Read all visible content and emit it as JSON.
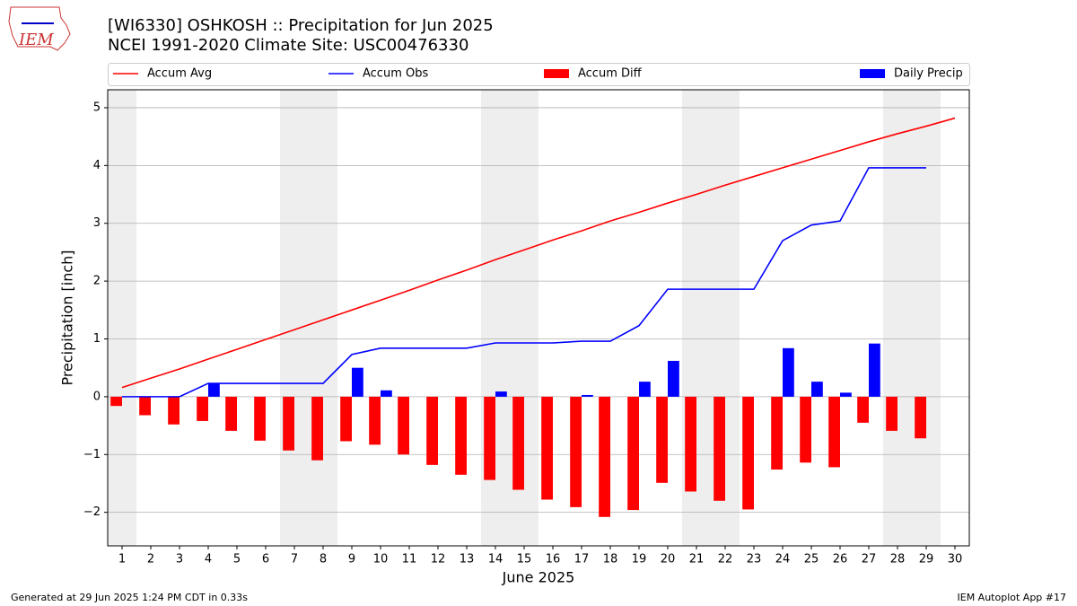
{
  "logo": {
    "text": "IEM"
  },
  "footer": {
    "left": "Generated at 29 Jun 2025 1:24 PM CDT in 0.33s",
    "right": "IEM Autoplot App #17"
  },
  "chart_data": {
    "type": "combo",
    "title": "[WI6330] OSHKOSH :: Precipitation for Jun 2025",
    "subtitle": "NCEI 1991-2020 Climate Site: USC00476330",
    "x_label": "June 2025",
    "y_label": "Precipitation [inch]",
    "x": [
      1,
      2,
      3,
      4,
      5,
      6,
      7,
      8,
      9,
      10,
      11,
      12,
      13,
      14,
      15,
      16,
      17,
      18,
      19,
      20,
      21,
      22,
      23,
      24,
      25,
      26,
      27,
      28,
      29,
      30
    ],
    "xlim": [
      0.5,
      30.5
    ],
    "xticks": [
      1,
      2,
      3,
      4,
      5,
      6,
      7,
      8,
      9,
      10,
      11,
      12,
      13,
      14,
      15,
      16,
      17,
      18,
      19,
      20,
      21,
      22,
      23,
      24,
      25,
      26,
      27,
      28,
      29,
      30
    ],
    "ylim": [
      -2.58,
      5.31
    ],
    "yticks": [
      {
        "value": -2,
        "label": "−2"
      },
      {
        "value": -1,
        "label": "−1"
      },
      0,
      1,
      2,
      3,
      4,
      5
    ],
    "grid": true,
    "shade_ranges": [
      [
        0.5,
        1.5
      ],
      [
        6.5,
        8.5
      ],
      [
        13.5,
        15.5
      ],
      [
        20.5,
        22.5
      ],
      [
        27.5,
        29.5
      ]
    ],
    "shade_color": "#eeeeee",
    "series": [
      {
        "name": "Accum Avg",
        "kind": "line",
        "color": "#ff0000",
        "values": [
          0.16,
          0.32,
          0.48,
          0.65,
          0.82,
          0.99,
          1.16,
          1.33,
          1.5,
          1.67,
          1.84,
          2.02,
          2.19,
          2.37,
          2.54,
          2.71,
          2.87,
          3.04,
          3.19,
          3.35,
          3.5,
          3.66,
          3.81,
          3.96,
          4.11,
          4.26,
          4.41,
          4.55,
          4.68,
          4.82
        ]
      },
      {
        "name": "Accum Obs",
        "kind": "line",
        "color": "#0000ff",
        "values": [
          0,
          0,
          0,
          0.23,
          0.23,
          0.23,
          0.23,
          0.23,
          0.73,
          0.84,
          0.84,
          0.84,
          0.84,
          0.93,
          0.93,
          0.93,
          0.96,
          0.96,
          1.23,
          1.86,
          1.86,
          1.86,
          1.86,
          2.7,
          2.97,
          3.04,
          3.96,
          3.96,
          3.96,
          null
        ]
      },
      {
        "name": "Accum Diff",
        "kind": "bar",
        "offset": -0.4,
        "color": "#ff0000",
        "values": [
          -0.16,
          -0.32,
          -0.48,
          -0.42,
          -0.59,
          -0.76,
          -0.93,
          -1.1,
          -0.77,
          -0.83,
          -1.0,
          -1.18,
          -1.35,
          -1.44,
          -1.61,
          -1.78,
          -1.91,
          -2.08,
          -1.96,
          -1.49,
          -1.64,
          -1.8,
          -1.95,
          -1.26,
          -1.14,
          -1.22,
          -0.45,
          -0.59,
          -0.72,
          null
        ]
      },
      {
        "name": "Daily Precip",
        "kind": "bar",
        "offset": 0,
        "color": "#0000ff",
        "values": [
          0,
          0,
          0,
          0.23,
          0,
          0,
          0,
          0,
          0.5,
          0.11,
          0,
          0,
          0,
          0.09,
          0,
          0,
          0.03,
          0,
          0.26,
          0.62,
          0,
          0,
          0,
          0.84,
          0.26,
          0.07,
          0.92,
          0,
          0,
          null
        ]
      }
    ]
  }
}
